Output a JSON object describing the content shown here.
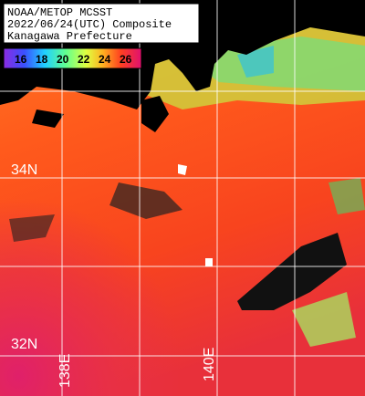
{
  "header": {
    "lines": [
      "NOAA/METOP MCSST",
      "2022/06/24(UTC) Composite",
      "Kanagawa Prefecture"
    ]
  },
  "colorbar": {
    "ticks": [
      "16",
      "18",
      "20",
      "22",
      "24",
      "26"
    ]
  },
  "grid_labels": {
    "latitudes": [
      "34N",
      "32N"
    ],
    "longitudes": [
      "138E",
      "140E"
    ]
  }
}
